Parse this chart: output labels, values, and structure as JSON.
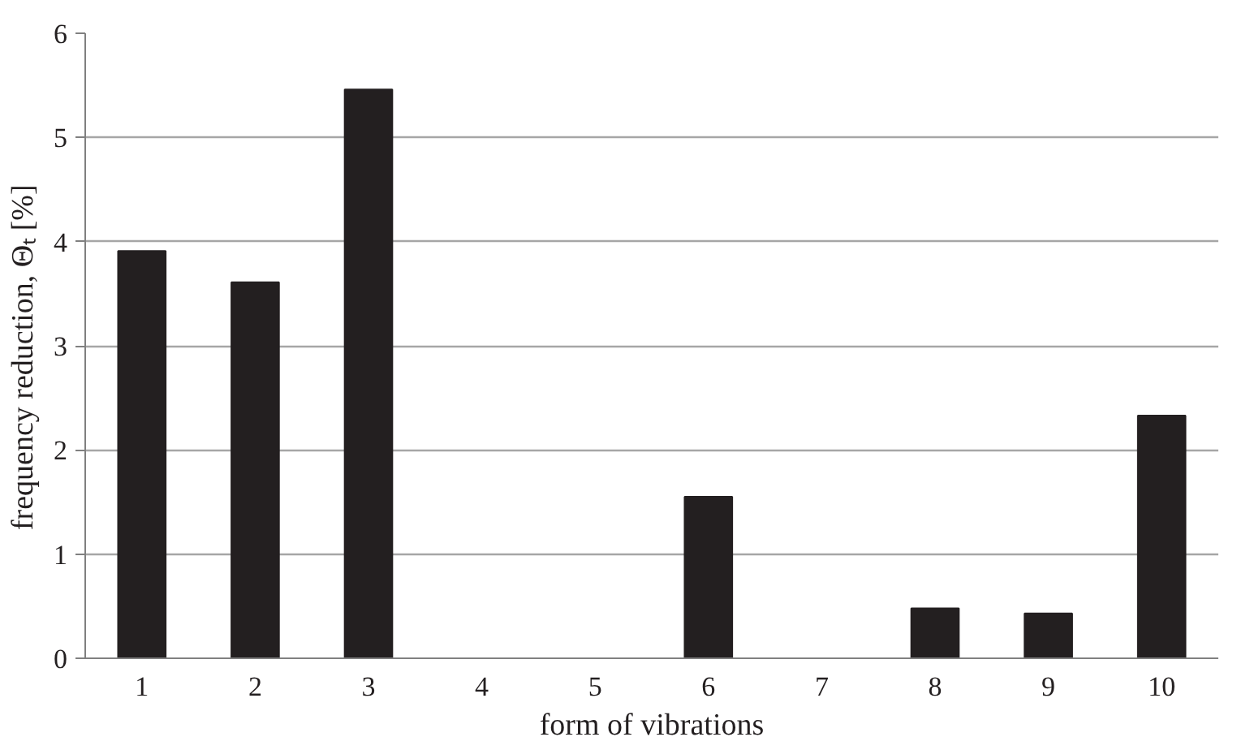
{
  "chart_data": {
    "type": "bar",
    "xlabel": "form of vibrations",
    "ylabel": "frequency reduction, Θₜ    [%]",
    "categories": [
      "1",
      "2",
      "3",
      "4",
      "5",
      "6",
      "7",
      "8",
      "9",
      "10"
    ],
    "values": [
      3.91,
      3.61,
      5.46,
      0,
      0,
      1.55,
      0,
      0.48,
      0.43,
      2.33
    ],
    "color": "#231f20",
    "ylim": [
      0,
      6
    ],
    "yticks": [
      0,
      1,
      2,
      3,
      4,
      5,
      6
    ],
    "grid": "y"
  }
}
